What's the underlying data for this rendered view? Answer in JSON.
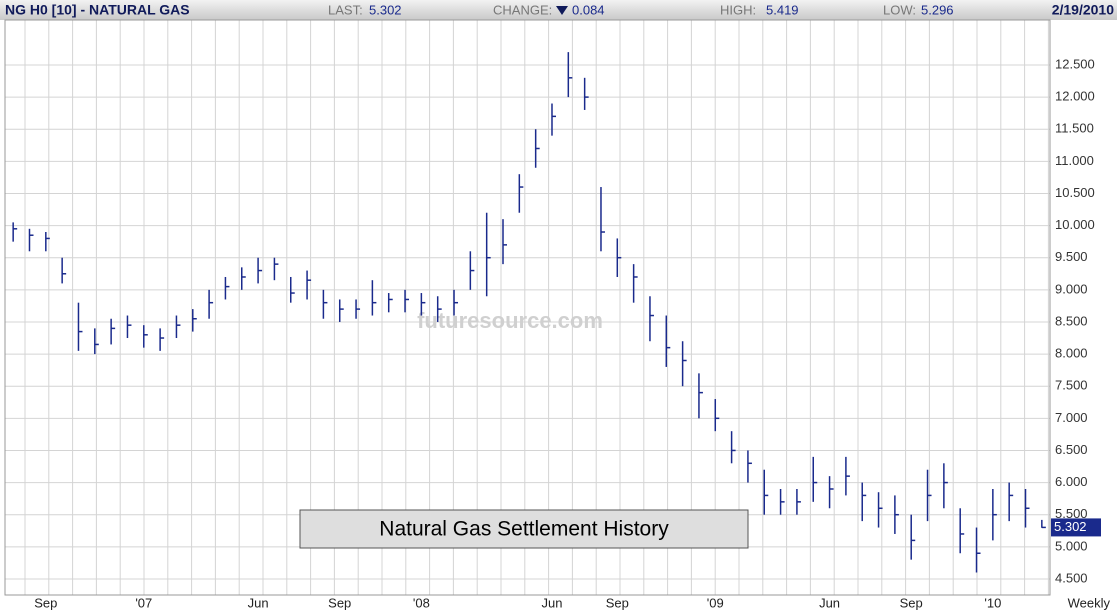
{
  "chart_data": {
    "type": "ohlc",
    "title": "NG H0 [10] - NATURAL GAS",
    "stats": [
      {
        "label": "LAST:",
        "value": 5.302
      },
      {
        "label": "CHANGE:",
        "value": 0.084
      },
      {
        "label": "HIGH:",
        "value": 5.419
      },
      {
        "label": "LOW:",
        "value": 5.296
      }
    ],
    "date": "2/19/2010",
    "annotation": "Natural Gas Settlement History",
    "watermark": "futuresource.com",
    "period": "Weekly",
    "color": "#1a2a8c",
    "grid": true,
    "categories": [
      null,
      null,
      "Sep",
      null,
      null,
      null,
      null,
      null,
      "'07",
      null,
      null,
      null,
      null,
      null,
      null,
      "Jun",
      null,
      null,
      null,
      null,
      "Sep",
      null,
      null,
      null,
      null,
      "'08",
      null,
      null,
      null,
      null,
      null,
      null,
      null,
      "Jun",
      null,
      null,
      null,
      "Sep",
      null,
      null,
      null,
      null,
      null,
      "'09",
      null,
      null,
      null,
      null,
      null,
      null,
      "Jun",
      null,
      null,
      null,
      null,
      "Sep",
      null,
      null,
      null,
      null,
      "'10",
      null,
      null,
      null
    ],
    "high": [
      10.05,
      9.95,
      9.9,
      9.5,
      8.8,
      8.4,
      8.55,
      8.6,
      8.45,
      8.4,
      8.6,
      8.7,
      9.0,
      9.2,
      9.35,
      9.5,
      9.5,
      9.2,
      9.3,
      9.0,
      8.85,
      8.85,
      9.15,
      8.95,
      9.0,
      8.95,
      8.9,
      9.0,
      9.6,
      10.2,
      10.1,
      10.8,
      11.5,
      11.9,
      12.7,
      12.3,
      10.6,
      9.8,
      9.4,
      8.9,
      8.6,
      8.2,
      7.7,
      7.3,
      6.8,
      6.5,
      6.2,
      5.9,
      5.9,
      6.4,
      6.1,
      6.4,
      6.0,
      5.85,
      5.8,
      5.5,
      6.2,
      6.3,
      5.6,
      5.3,
      5.9,
      6.0,
      5.9,
      5.419
    ],
    "low": [
      9.75,
      9.6,
      9.6,
      9.1,
      8.05,
      8.0,
      8.15,
      8.25,
      8.1,
      8.05,
      8.25,
      8.35,
      8.55,
      8.85,
      9.0,
      9.1,
      9.15,
      8.8,
      8.85,
      8.55,
      8.5,
      8.55,
      8.6,
      8.65,
      8.65,
      8.6,
      8.5,
      8.6,
      9.0,
      8.9,
      9.4,
      10.2,
      10.9,
      11.4,
      12.0,
      11.8,
      9.6,
      9.2,
      8.8,
      8.2,
      7.8,
      7.5,
      7.0,
      6.8,
      6.3,
      6.0,
      5.5,
      5.5,
      5.5,
      5.7,
      5.6,
      5.8,
      5.4,
      5.3,
      5.2,
      4.8,
      5.4,
      5.6,
      4.9,
      4.6,
      5.1,
      5.4,
      5.3,
      5.296
    ],
    "close": [
      9.95,
      9.85,
      9.8,
      9.25,
      8.35,
      8.15,
      8.4,
      8.45,
      8.3,
      8.25,
      8.45,
      8.55,
      8.8,
      9.05,
      9.2,
      9.3,
      9.4,
      8.95,
      9.15,
      8.8,
      8.7,
      8.7,
      8.8,
      8.85,
      8.85,
      8.8,
      8.7,
      8.8,
      9.3,
      9.5,
      9.7,
      10.6,
      11.2,
      11.7,
      12.3,
      12.0,
      9.9,
      9.5,
      9.2,
      8.6,
      8.1,
      7.9,
      7.4,
      7.0,
      6.5,
      6.3,
      5.8,
      5.7,
      5.7,
      6.0,
      5.9,
      6.1,
      5.8,
      5.6,
      5.5,
      5.1,
      5.8,
      6.0,
      5.2,
      4.9,
      5.5,
      5.8,
      5.6,
      5.302
    ],
    "ylim": [
      4.25,
      13.2
    ],
    "yticks": [
      {
        "value": 4.5,
        "label": "4.500"
      },
      {
        "value": 5,
        "label": "5.000"
      },
      {
        "value": 5.5,
        "label": "5.500"
      },
      {
        "value": 6,
        "label": "6.000"
      },
      {
        "value": 6.5,
        "label": "6.500"
      },
      {
        "value": 7,
        "label": "7.000"
      },
      {
        "value": 7.5,
        "label": "7.500"
      },
      {
        "value": 8,
        "label": "8.000"
      },
      {
        "value": 8.5,
        "label": "8.500"
      },
      {
        "value": 9,
        "label": "9.000"
      },
      {
        "value": 9.5,
        "label": "9.500"
      },
      {
        "value": 10,
        "label": "10.000"
      },
      {
        "value": 10.5,
        "label": "10.500"
      },
      {
        "value": 11,
        "label": "11.000"
      },
      {
        "value": 11.5,
        "label": "11.500"
      },
      {
        "value": 12,
        "label": "12.000"
      },
      {
        "value": 12.5,
        "label": "12.500"
      }
    ]
  }
}
